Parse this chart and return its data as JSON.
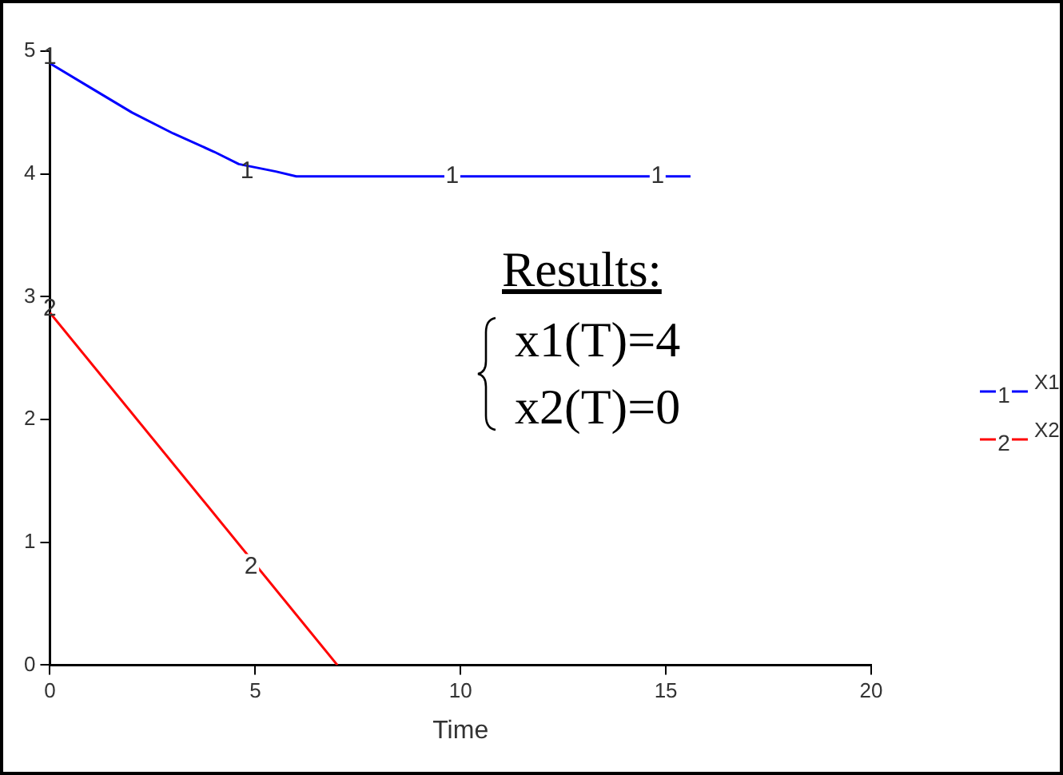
{
  "chart_data": {
    "type": "line",
    "xlabel": "Time",
    "xlim": [
      0,
      20
    ],
    "xticks": [
      0,
      5,
      10,
      15,
      20
    ],
    "ylim": [
      0,
      5
    ],
    "yticks": [
      0,
      1,
      2,
      3,
      4,
      5
    ],
    "grid": false,
    "legend": "right",
    "marker": "none",
    "line_style": "solid",
    "series": [
      {
        "name": "X1",
        "color": "#0000ff",
        "x": [
          0,
          1,
          2,
          3,
          4,
          4.6,
          5.5,
          6,
          15.6
        ],
        "values": [
          4.9,
          4.7,
          4.5,
          4.33,
          4.18,
          4.08,
          4.02,
          3.98,
          3.98
        ]
      },
      {
        "name": "X2",
        "color": "#ff0000",
        "x": [
          0,
          7
        ],
        "values": [
          2.87,
          0
        ]
      }
    ],
    "annotations": [
      {
        "text": "1",
        "x": 0,
        "y": 4.95
      },
      {
        "text": "1",
        "x": 4.8,
        "y": 4.02
      },
      {
        "text": "1",
        "x": 9.8,
        "y": 3.98
      },
      {
        "text": "1",
        "x": 14.8,
        "y": 3.98
      },
      {
        "text": "2",
        "x": 0,
        "y": 2.9
      },
      {
        "text": "2",
        "x": 4.9,
        "y": 0.8
      },
      "Results:",
      "x1(T)=4",
      "x2(T)=0"
    ]
  }
}
